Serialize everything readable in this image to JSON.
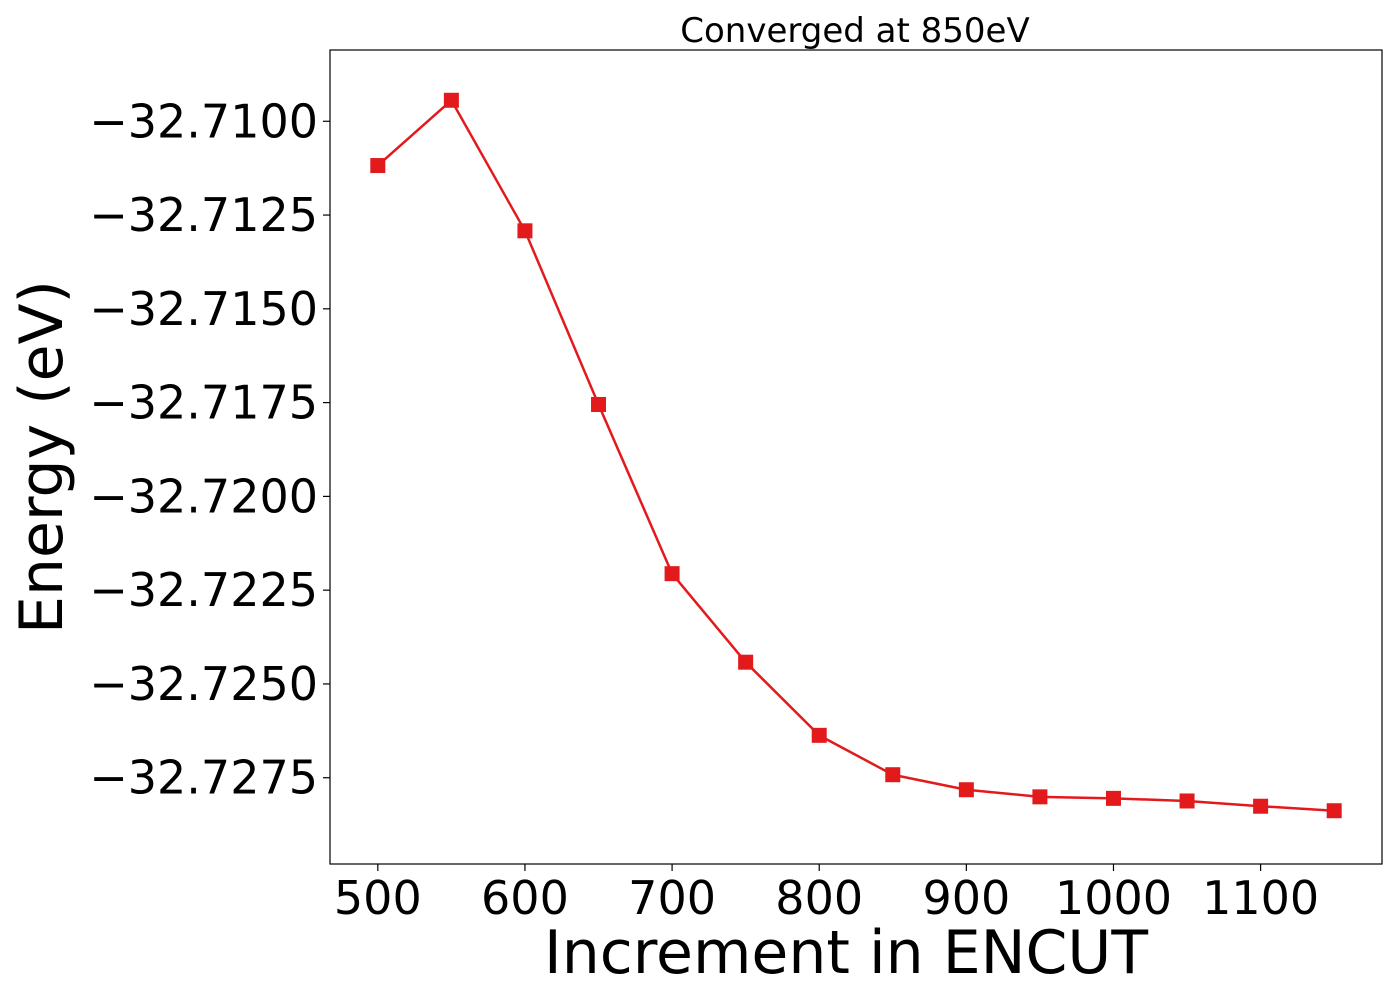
{
  "chart_data": {
    "type": "line",
    "title": "Converged at 850eV",
    "xlabel": "Increment in ENCUT",
    "ylabel": "Energy (eV)",
    "xlim": [
      467.5,
      1182.5
    ],
    "ylim": [
      -32.7298,
      -32.7081
    ],
    "xticks": [
      500,
      600,
      700,
      800,
      900,
      1000,
      1100
    ],
    "xtick_labels": [
      "500",
      "600",
      "700",
      "800",
      "900",
      "1000",
      "1100"
    ],
    "yticks": [
      -32.71,
      -32.7125,
      -32.715,
      -32.7175,
      -32.72,
      -32.7225,
      -32.725,
      -32.7275
    ],
    "ytick_labels": [
      "−32.7100",
      "−32.7125",
      "−32.7150",
      "−32.7175",
      "−32.7200",
      "−32.7225",
      "−32.7250",
      "−32.7275"
    ],
    "grid": false,
    "series": [
      {
        "color": "#e31a1c",
        "marker": "square",
        "x": [
          500,
          550,
          600,
          650,
          700,
          750,
          800,
          850,
          900,
          950,
          1000,
          1050,
          1100,
          1150
        ],
        "y": [
          -32.71118,
          -32.70944,
          -32.71292,
          -32.71755,
          -32.72206,
          -32.72442,
          -32.72637,
          -32.72742,
          -32.72782,
          -32.72801,
          -32.72805,
          -32.72812,
          -32.72826,
          -32.72838
        ]
      }
    ]
  }
}
